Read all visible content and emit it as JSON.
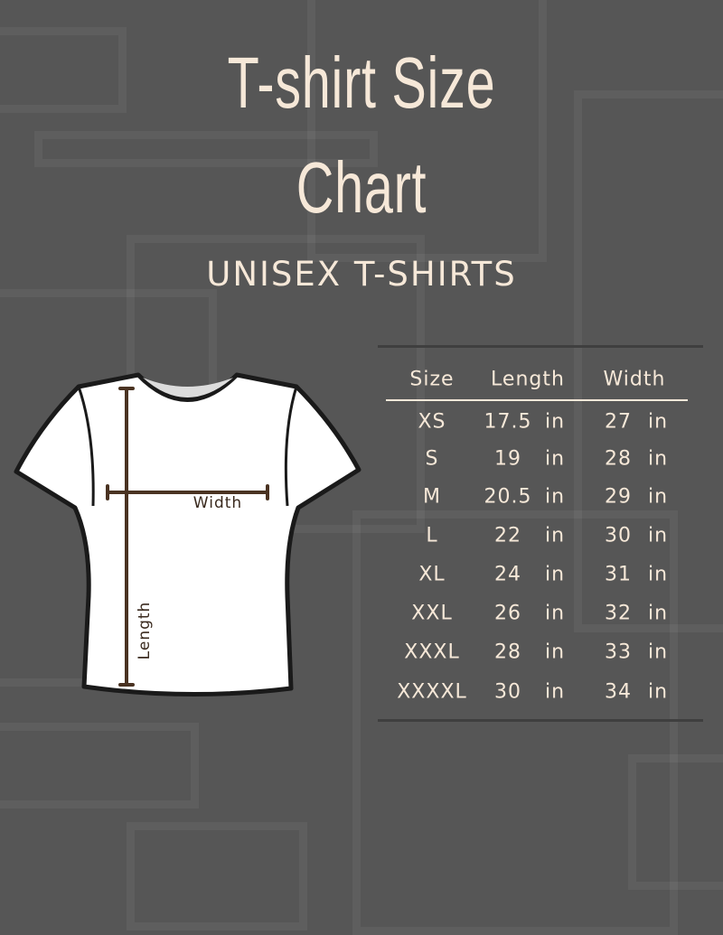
{
  "title_line1": "T-shirt Size",
  "title_line2": "Chart",
  "subtitle": "UNISEX T-SHIRTS",
  "diagram": {
    "width_label": "Width",
    "length_label": "Length"
  },
  "table": {
    "headers": [
      "Size",
      "Length",
      "Width"
    ],
    "unit": "in",
    "rows": [
      {
        "size": "XS",
        "length": "17.5",
        "width": "27"
      },
      {
        "size": "S",
        "length": "19",
        "width": "28"
      },
      {
        "size": "M",
        "length": "20.5",
        "width": "29"
      },
      {
        "size": "L",
        "length": "22",
        "width": "30"
      },
      {
        "size": "XL",
        "length": "24",
        "width": "31"
      },
      {
        "size": "XXL",
        "length": "26",
        "width": "32"
      },
      {
        "size": "XXXL",
        "length": "28",
        "width": "33"
      },
      {
        "size": "XXXXL",
        "length": "30",
        "width": "34"
      }
    ]
  },
  "colors": {
    "background": "#565656",
    "text": "#f6e8d8",
    "measure": "#4a3322"
  }
}
